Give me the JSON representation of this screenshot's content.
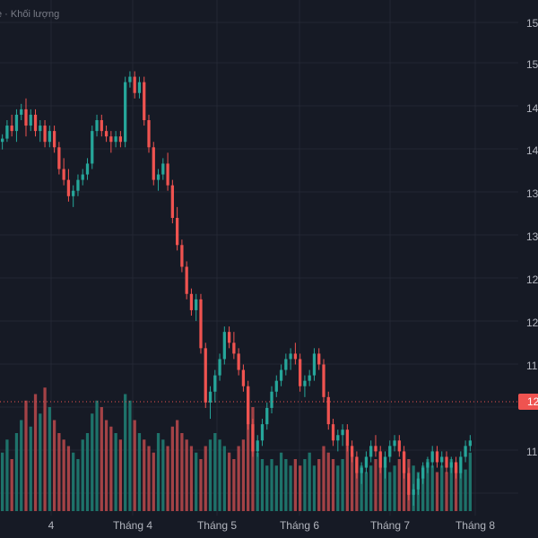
{
  "legend": {
    "text": "e · Khối lượng"
  },
  "chart_data": {
    "type": "candlestick",
    "x_ticks": [
      "4",
      "Tháng 4",
      "Tháng 5",
      "Tháng 6",
      "Tháng 7",
      "Tháng 8"
    ],
    "y_ticks": [
      "15",
      "15",
      "14",
      "14",
      "13",
      "13",
      "12",
      "12",
      "11",
      "11"
    ],
    "last_price_label": "12",
    "colors": {
      "up": "#26a69a",
      "down": "#ef5350",
      "up_vol": "#1f7c72",
      "down_vol": "#b2474a",
      "background": "#161a25",
      "grid": "#232733",
      "last_price": "#ef5350"
    },
    "ylim": [
      110.5,
      155.5
    ],
    "candles": [
      [
        144.5,
        145.2,
        143.8,
        144.8
      ],
      [
        144.8,
        146.5,
        144.5,
        146.0
      ],
      [
        146.0,
        147.0,
        145.0,
        145.5
      ],
      [
        145.5,
        147.5,
        144.5,
        147.0
      ],
      [
        147.0,
        148.0,
        146.5,
        147.5
      ],
      [
        147.5,
        148.5,
        145.0,
        146.0
      ],
      [
        146.0,
        147.5,
        145.5,
        147.0
      ],
      [
        147.0,
        147.5,
        145.0,
        145.5
      ],
      [
        145.5,
        146.5,
        144.5,
        146.0
      ],
      [
        146.0,
        146.5,
        144.0,
        144.5
      ],
      [
        144.5,
        146.0,
        144.0,
        145.5
      ],
      [
        145.5,
        146.0,
        143.5,
        144.0
      ],
      [
        144.0,
        144.5,
        141.5,
        142.0
      ],
      [
        142.0,
        143.0,
        140.5,
        141.0
      ],
      [
        141.0,
        142.0,
        139.0,
        139.5
      ],
      [
        139.5,
        140.5,
        138.5,
        140.0
      ],
      [
        140.0,
        141.5,
        139.5,
        141.0
      ],
      [
        141.0,
        142.0,
        140.5,
        141.5
      ],
      [
        141.5,
        143.0,
        141.0,
        142.5
      ],
      [
        142.5,
        146.0,
        142.0,
        145.5
      ],
      [
        145.5,
        147.0,
        145.0,
        146.5
      ],
      [
        146.5,
        147.0,
        145.0,
        145.5
      ],
      [
        145.5,
        146.0,
        144.5,
        145.0
      ],
      [
        145.0,
        145.5,
        143.5,
        144.5
      ],
      [
        144.5,
        145.5,
        144.0,
        145.0
      ],
      [
        145.0,
        145.5,
        144.0,
        144.5
      ],
      [
        144.5,
        150.5,
        144.0,
        150.0
      ],
      [
        150.0,
        151.0,
        149.5,
        150.5
      ],
      [
        150.5,
        151.0,
        148.5,
        149.0
      ],
      [
        149.0,
        150.5,
        148.5,
        150.0
      ],
      [
        150.0,
        150.5,
        146.0,
        146.5
      ],
      [
        146.5,
        147.0,
        143.5,
        144.0
      ],
      [
        144.0,
        144.5,
        140.5,
        141.0
      ],
      [
        141.0,
        142.0,
        140.0,
        141.5
      ],
      [
        141.5,
        143.0,
        141.0,
        142.5
      ],
      [
        142.5,
        143.5,
        140.0,
        140.5
      ],
      [
        140.5,
        141.0,
        137.0,
        137.5
      ],
      [
        137.5,
        138.5,
        134.5,
        135.0
      ],
      [
        135.0,
        135.5,
        132.5,
        133.0
      ],
      [
        133.0,
        133.5,
        130.0,
        130.5
      ],
      [
        130.5,
        131.0,
        128.5,
        129.0
      ],
      [
        129.0,
        130.5,
        128.0,
        130.0
      ],
      [
        130.0,
        130.5,
        125.0,
        125.5
      ],
      [
        125.5,
        126.0,
        120.0,
        120.5
      ],
      [
        120.5,
        122.0,
        119.0,
        121.5
      ],
      [
        121.5,
        123.5,
        120.5,
        123.0
      ],
      [
        123.0,
        125.0,
        122.5,
        124.5
      ],
      [
        124.5,
        127.5,
        124.0,
        127.0
      ],
      [
        127.0,
        127.5,
        125.5,
        126.0
      ],
      [
        126.0,
        127.0,
        124.5,
        125.0
      ],
      [
        125.0,
        125.5,
        123.0,
        123.5
      ],
      [
        123.5,
        124.0,
        121.5,
        122.0
      ],
      [
        122.0,
        122.5,
        118.0,
        118.5
      ],
      [
        118.5,
        119.0,
        115.5,
        116.0
      ],
      [
        116.0,
        117.5,
        115.5,
        117.0
      ],
      [
        117.0,
        119.0,
        116.5,
        118.5
      ],
      [
        118.5,
        120.5,
        118.0,
        120.0
      ],
      [
        120.0,
        122.0,
        119.5,
        121.5
      ],
      [
        121.5,
        123.0,
        121.0,
        122.5
      ],
      [
        122.5,
        124.0,
        122.0,
        123.5
      ],
      [
        123.5,
        125.0,
        123.0,
        124.5
      ],
      [
        124.5,
        125.5,
        123.5,
        125.0
      ],
      [
        125.0,
        126.0,
        124.0,
        124.5
      ],
      [
        124.5,
        125.0,
        121.5,
        122.0
      ],
      [
        122.0,
        123.0,
        121.0,
        122.5
      ],
      [
        122.5,
        123.5,
        122.0,
        123.0
      ],
      [
        123.0,
        125.5,
        122.5,
        125.0
      ],
      [
        125.0,
        125.5,
        123.5,
        124.0
      ],
      [
        124.0,
        124.5,
        120.5,
        121.0
      ],
      [
        121.0,
        121.5,
        118.0,
        118.5
      ],
      [
        118.5,
        119.0,
        116.5,
        117.0
      ],
      [
        117.0,
        118.0,
        116.0,
        117.5
      ],
      [
        117.5,
        118.5,
        116.5,
        118.0
      ],
      [
        118.0,
        118.5,
        116.0,
        116.5
      ],
      [
        116.5,
        117.0,
        115.0,
        115.5
      ],
      [
        115.5,
        116.0,
        113.5,
        114.0
      ],
      [
        114.0,
        115.0,
        113.0,
        114.5
      ],
      [
        114.5,
        116.0,
        114.0,
        115.5
      ],
      [
        115.5,
        117.0,
        115.0,
        116.5
      ],
      [
        116.5,
        117.5,
        115.5,
        116.0
      ],
      [
        116.0,
        116.5,
        114.0,
        114.5
      ],
      [
        114.5,
        116.0,
        113.5,
        115.5
      ],
      [
        115.5,
        117.0,
        115.0,
        116.5
      ],
      [
        116.5,
        117.5,
        116.0,
        117.0
      ],
      [
        117.0,
        117.5,
        115.5,
        116.0
      ],
      [
        116.0,
        116.5,
        113.5,
        114.0
      ],
      [
        114.0,
        114.5,
        111.5,
        112.0
      ],
      [
        112.0,
        113.0,
        111.0,
        112.5
      ],
      [
        112.5,
        114.0,
        112.0,
        113.5
      ],
      [
        113.5,
        115.0,
        113.0,
        114.5
      ],
      [
        114.5,
        115.5,
        114.0,
        115.0
      ],
      [
        115.0,
        116.5,
        114.5,
        116.0
      ],
      [
        116.0,
        116.5,
        114.5,
        115.0
      ],
      [
        115.0,
        116.0,
        114.5,
        115.5
      ],
      [
        115.5,
        116.0,
        114.0,
        114.5
      ],
      [
        114.5,
        115.5,
        114.0,
        115.0
      ],
      [
        115.0,
        115.5,
        113.5,
        114.0
      ],
      [
        114.0,
        116.0,
        113.5,
        115.5
      ],
      [
        115.5,
        117.0,
        115.0,
        116.5
      ],
      [
        116.5,
        117.5,
        116.0,
        117.0
      ]
    ],
    "volumes": [
      0.45,
      0.55,
      0.4,
      0.6,
      0.7,
      0.85,
      0.65,
      0.9,
      0.75,
      0.95,
      0.8,
      0.7,
      0.6,
      0.55,
      0.5,
      0.45,
      0.4,
      0.55,
      0.6,
      0.75,
      0.85,
      0.8,
      0.7,
      0.65,
      0.6,
      0.55,
      0.9,
      0.85,
      0.7,
      0.6,
      0.55,
      0.5,
      0.45,
      0.6,
      0.55,
      0.5,
      0.65,
      0.7,
      0.6,
      0.55,
      0.5,
      0.45,
      0.4,
      0.5,
      0.55,
      0.6,
      0.55,
      0.5,
      0.45,
      0.4,
      0.5,
      0.55,
      0.95,
      0.8,
      0.45,
      0.4,
      0.35,
      0.4,
      0.35,
      0.45,
      0.4,
      0.35,
      0.4,
      0.35,
      0.4,
      0.45,
      0.35,
      0.4,
      0.5,
      0.45,
      0.4,
      0.35,
      0.4,
      0.5,
      0.45,
      0.4,
      0.35,
      0.3,
      0.35,
      0.4,
      0.45,
      0.35,
      0.3,
      0.35,
      0.4,
      0.45,
      0.4,
      0.35,
      0.3,
      0.35,
      0.4,
      0.35,
      0.3,
      0.35,
      0.3,
      0.4,
      0.35,
      0.3,
      0.32,
      0.45
    ]
  }
}
